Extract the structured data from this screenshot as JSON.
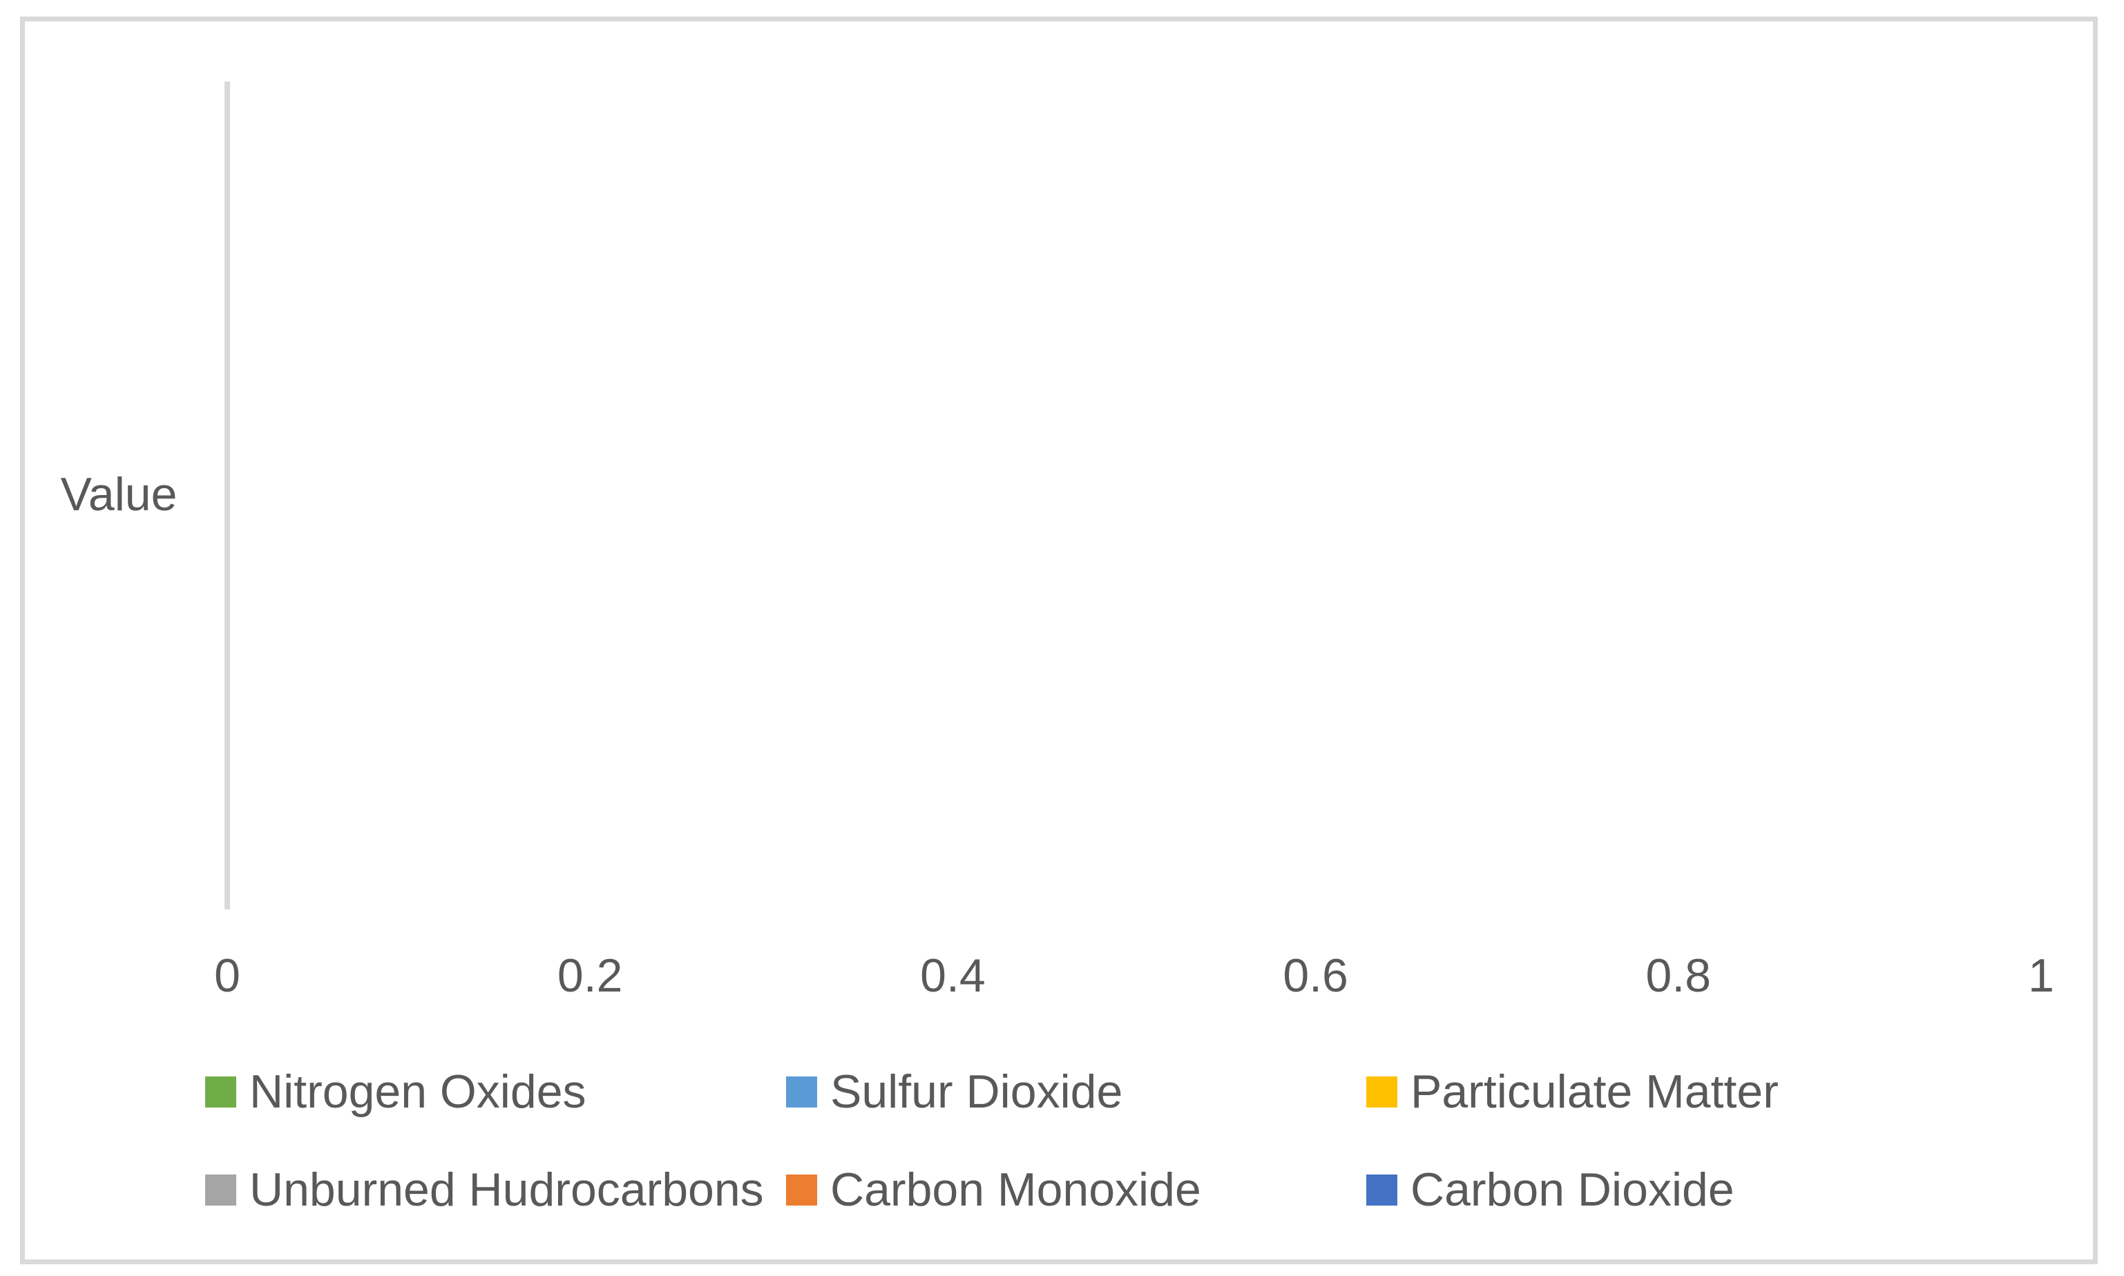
{
  "figure": {
    "background_color": "#FFFFFF",
    "frame_color": "#D9D9D9",
    "axis_line_color": "#D9D9D9",
    "text_color": "#595959"
  },
  "chart_data": {
    "type": "bar",
    "orientation": "horizontal",
    "title": "",
    "categories": [
      "Value"
    ],
    "series": [
      {
        "name": "Nitrogen Oxides",
        "color": "#70AD47",
        "values": []
      },
      {
        "name": "Sulfur Dioxide",
        "color": "#5B9BD5",
        "values": []
      },
      {
        "name": "Particulate Matter",
        "color": "#FFC000",
        "values": []
      },
      {
        "name": "Unburned Hudrocarbons",
        "color": "#A5A5A5",
        "values": []
      },
      {
        "name": "Carbon Monoxide",
        "color": "#ED7D31",
        "values": []
      },
      {
        "name": "Carbon Dioxide",
        "color": "#4472C4",
        "values": []
      }
    ],
    "value_axis": {
      "min": 0,
      "max": 1,
      "tick_labels": [
        "0",
        "0.2",
        "0.4",
        "0.6",
        "0.8",
        "1"
      ],
      "tick_values": [
        0,
        0.2,
        0.4,
        0.6,
        0.8,
        1
      ]
    },
    "grid": false,
    "legend_position": "bottom",
    "legend_columns": 3
  }
}
